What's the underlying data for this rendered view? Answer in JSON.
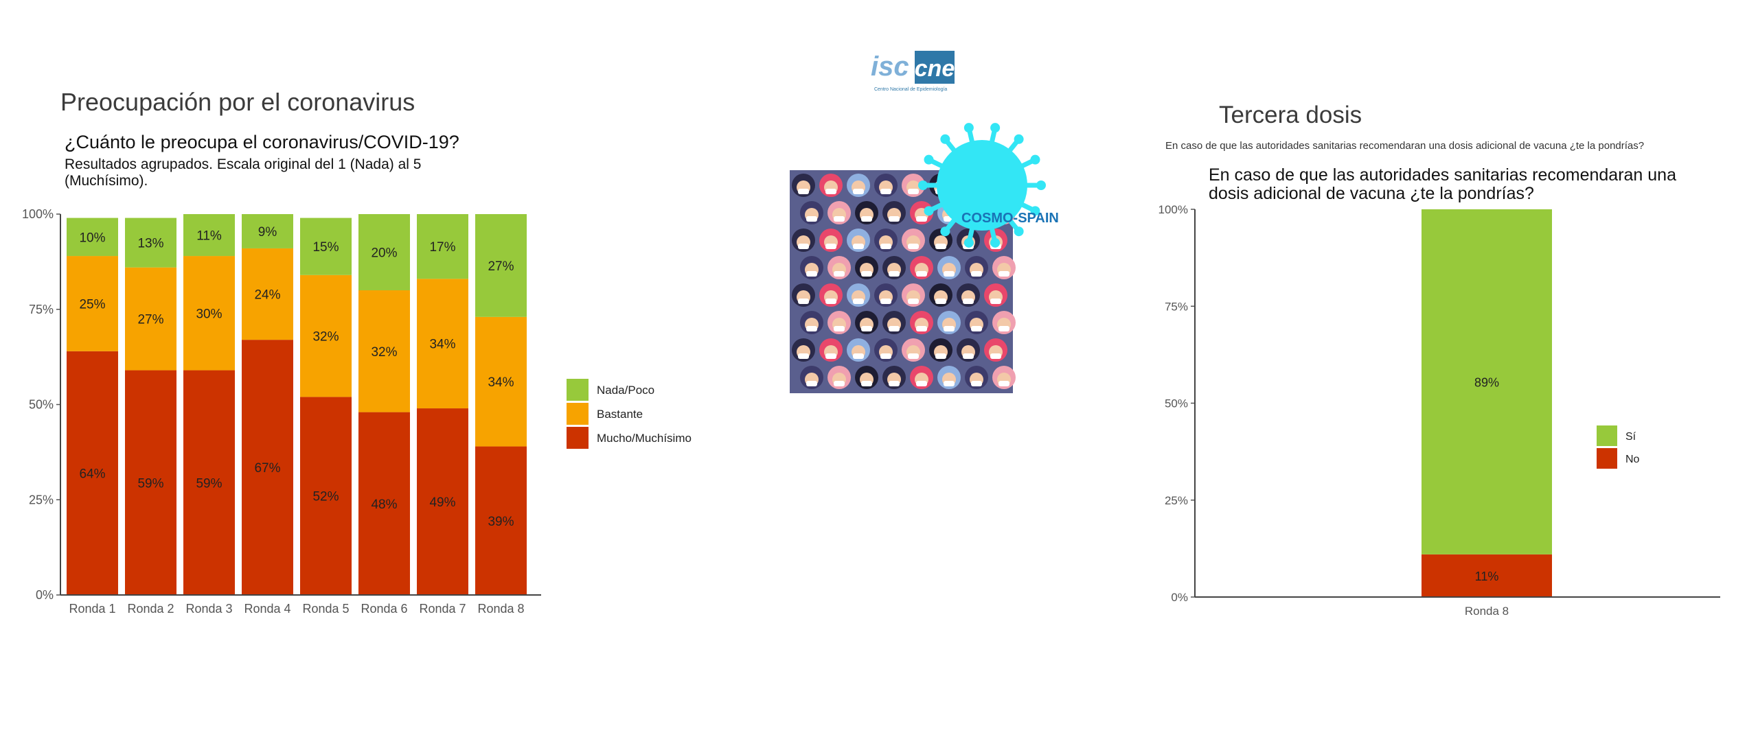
{
  "left": {
    "section_title": "Preocupación por el coronavirus",
    "chart_title": "¿Cuánto le preocupa el coronavirus/COVID-19?",
    "subtitle": "Resultados agrupados. Escala original del 1 (Nada) al 5 (Muchísimo)."
  },
  "right": {
    "section_title": "Tercera dosis",
    "caption": "En caso de que las autoridades sanitarias recomendaran una dosis adicional de vacuna ¿te la pondrías?",
    "chart_title": "En caso de que las autoridades sanitarias recomendaran una dosis adicional de vacuna ¿te la pondrías?"
  },
  "logo": {
    "text": "cne",
    "subtext": "Centro Nacional de Epidemiología",
    "mark": "isc"
  },
  "image": {
    "label": "COSMO-SPAIN"
  },
  "colors": {
    "green": "#97c93b",
    "orange": "#f7a300",
    "red": "#cc3300",
    "cyan": "#33e6f5",
    "logo_blue": "#2f78a8"
  },
  "chart_data": [
    {
      "type": "bar",
      "stacked": true,
      "categories": [
        "Ronda 1",
        "Ronda 2",
        "Ronda 3",
        "Ronda 4",
        "Ronda 5",
        "Ronda 6",
        "Ronda 7",
        "Ronda 8"
      ],
      "series": [
        {
          "name": "Mucho/Muchísimo",
          "color": "#cc3300",
          "values": [
            64,
            59,
            59,
            67,
            52,
            48,
            49,
            39
          ]
        },
        {
          "name": "Bastante",
          "color": "#f7a300",
          "values": [
            25,
            27,
            30,
            24,
            32,
            32,
            34,
            34
          ]
        },
        {
          "name": "Nada/Poco",
          "color": "#97c93b",
          "values": [
            10,
            13,
            11,
            9,
            15,
            20,
            17,
            27
          ]
        }
      ],
      "legend_order": [
        "Nada/Poco",
        "Bastante",
        "Mucho/Muchísimo"
      ],
      "ytick_labels": [
        "0%",
        "25%",
        "50%",
        "75%",
        "100%"
      ],
      "ylim": [
        0,
        100
      ],
      "legend": "right"
    },
    {
      "type": "bar",
      "stacked": true,
      "categories": [
        "Ronda 8"
      ],
      "series": [
        {
          "name": "No",
          "color": "#cc3300",
          "values": [
            11
          ]
        },
        {
          "name": "Sí",
          "color": "#97c93b",
          "values": [
            89
          ]
        }
      ],
      "legend_order": [
        "Sí",
        "No"
      ],
      "ytick_labels": [
        "0%",
        "25%",
        "50%",
        "75%",
        "100%"
      ],
      "ylim": [
        0,
        100
      ],
      "legend": "right"
    }
  ]
}
